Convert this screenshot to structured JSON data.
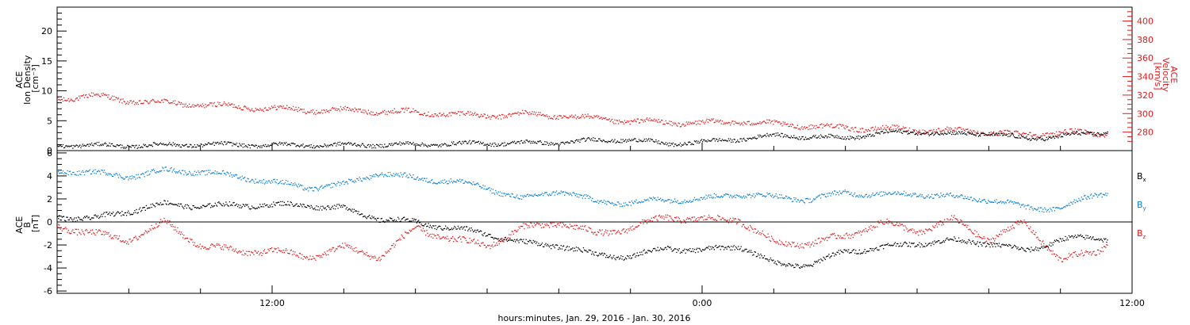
{
  "xlabel": "hours:minutes, Jan. 29, 2016 - Jan. 30, 2016",
  "x_ticks": [
    "12:00",
    "0:00",
    "12:00"
  ],
  "colors": {
    "black": "#000000",
    "red": "#e41a1c",
    "blue": "#0b7fd4"
  },
  "chart_data": [
    {
      "type": "scatter",
      "panel": "top",
      "ylabel_left": [
        "ACE",
        "Ion Density",
        "[cm⁻³]"
      ],
      "ylabel_right": [
        "ACE",
        "Velocity",
        "[km/s]"
      ],
      "y_ticks": [
        "0",
        "5",
        "10",
        "15",
        "20"
      ],
      "y2_ticks": [
        "280",
        "300",
        "320",
        "340",
        "360",
        "380",
        "400"
      ],
      "ylim": [
        0,
        24
      ],
      "y2lim": [
        260,
        415
      ],
      "xlim_hours": [
        6,
        36
      ],
      "series": [
        {
          "axis": "left",
          "color": "#000000",
          "x": [
            6.0,
            8.0,
            10.0,
            12.0,
            14.0,
            16.0,
            18.0,
            20.0,
            21.0,
            22.0,
            23.0,
            24.0,
            25.0,
            26.0,
            27.0,
            28.0,
            29.0,
            30.0,
            31.0,
            32.0,
            33.0,
            34.0,
            35.0,
            35.3
          ],
          "y": [
            1.0,
            0.9,
            1.1,
            1.0,
            1.0,
            1.1,
            1.3,
            1.4,
            1.8,
            1.9,
            1.2,
            1.5,
            2.0,
            2.6,
            2.4,
            2.2,
            3.0,
            3.2,
            2.8,
            3.0,
            2.0,
            2.5,
            3.0,
            3.2
          ]
        },
        {
          "axis": "right",
          "color": "#e41a1c",
          "x": [
            6.0,
            6.5,
            7.0,
            8.0,
            9.0,
            10.0,
            11.0,
            12.0,
            13.0,
            14.0,
            15.0,
            16.0,
            17.0,
            18.0,
            19.0,
            20.0,
            21.0,
            22.0,
            23.0,
            24.0,
            25.0,
            26.0,
            27.0,
            28.0,
            29.0,
            30.0,
            31.0,
            32.0,
            33.0,
            34.0,
            35.0,
            35.3
          ],
          "y": [
            316,
            318,
            320,
            314,
            312,
            310,
            308,
            306,
            304,
            304,
            303,
            302,
            300,
            298,
            300,
            298,
            295,
            292,
            291,
            290,
            292,
            289,
            287,
            285,
            284,
            283,
            282,
            280,
            278,
            280,
            279,
            279
          ]
        }
      ]
    },
    {
      "type": "scatter",
      "panel": "bottom",
      "ylabel_left": [
        "ACE",
        "B",
        "[nT]"
      ],
      "y_ticks": [
        "-6",
        "-4",
        "-2",
        "0",
        "2",
        "4",
        "6"
      ],
      "ylim": [
        -6.2,
        6.2
      ],
      "xlim_hours": [
        6,
        36
      ],
      "legend": [
        "Bx",
        "By",
        "Bz"
      ],
      "legend_position": "right",
      "series": [
        {
          "name": "Bx",
          "color": "#000000",
          "x": [
            6.0,
            7.0,
            8.0,
            9.0,
            10.0,
            11.0,
            12.0,
            13.0,
            14.0,
            15.0,
            16.0,
            17.0,
            18.0,
            19.0,
            20.0,
            21.0,
            22.0,
            23.0,
            24.0,
            25.0,
            26.0,
            27.0,
            28.0,
            29.0,
            30.0,
            31.0,
            32.0,
            33.0,
            34.0,
            35.0,
            35.3
          ],
          "y": [
            0.5,
            0.3,
            1.0,
            1.6,
            1.4,
            1.5,
            1.5,
            1.5,
            1.2,
            0.3,
            0.0,
            -0.5,
            -1.0,
            -1.8,
            -2.0,
            -2.8,
            -3.0,
            -2.2,
            -2.5,
            -2.0,
            -3.6,
            -3.7,
            -2.5,
            -2.2,
            -1.8,
            -1.6,
            -1.8,
            -2.5,
            -1.5,
            -1.3,
            -1.4
          ]
        },
        {
          "name": "By",
          "color": "#0b7fd4",
          "x": [
            6.0,
            7.0,
            8.0,
            9.0,
            10.0,
            11.0,
            12.0,
            13.0,
            14.0,
            15.0,
            16.0,
            17.0,
            18.0,
            19.0,
            20.0,
            21.0,
            22.0,
            23.0,
            24.0,
            25.0,
            26.0,
            27.0,
            28.0,
            29.0,
            30.0,
            31.0,
            32.0,
            33.0,
            34.0,
            35.0,
            35.3
          ],
          "y": [
            4.5,
            4.3,
            4.0,
            4.5,
            4.4,
            4.0,
            3.5,
            3.0,
            3.3,
            4.3,
            3.8,
            3.6,
            3.0,
            2.0,
            2.8,
            1.8,
            1.7,
            2.0,
            2.0,
            2.5,
            2.2,
            2.0,
            2.6,
            2.4,
            2.5,
            2.2,
            2.0,
            1.3,
            1.2,
            2.5,
            2.6
          ]
        },
        {
          "name": "Bz",
          "color": "#e41a1c",
          "x": [
            6.0,
            7.0,
            8.0,
            9.0,
            10.0,
            11.0,
            12.0,
            13.0,
            14.0,
            15.0,
            16.0,
            17.0,
            18.0,
            19.0,
            20.0,
            21.0,
            22.0,
            23.0,
            24.0,
            25.0,
            26.0,
            27.0,
            28.0,
            29.0,
            30.0,
            31.0,
            32.0,
            33.0,
            34.0,
            35.0,
            35.3
          ],
          "y": [
            -0.3,
            -1.0,
            -1.5,
            0.0,
            -2.0,
            -2.5,
            -2.5,
            -3.0,
            -2.2,
            -3.0,
            -0.5,
            -1.5,
            -2.0,
            -0.5,
            0.0,
            -1.0,
            -0.5,
            0.5,
            0.2,
            0.3,
            -1.8,
            -1.8,
            -1.2,
            0.0,
            -0.8,
            0.2,
            -1.5,
            0.0,
            -3.3,
            -2.5,
            -1.8
          ]
        }
      ]
    }
  ]
}
